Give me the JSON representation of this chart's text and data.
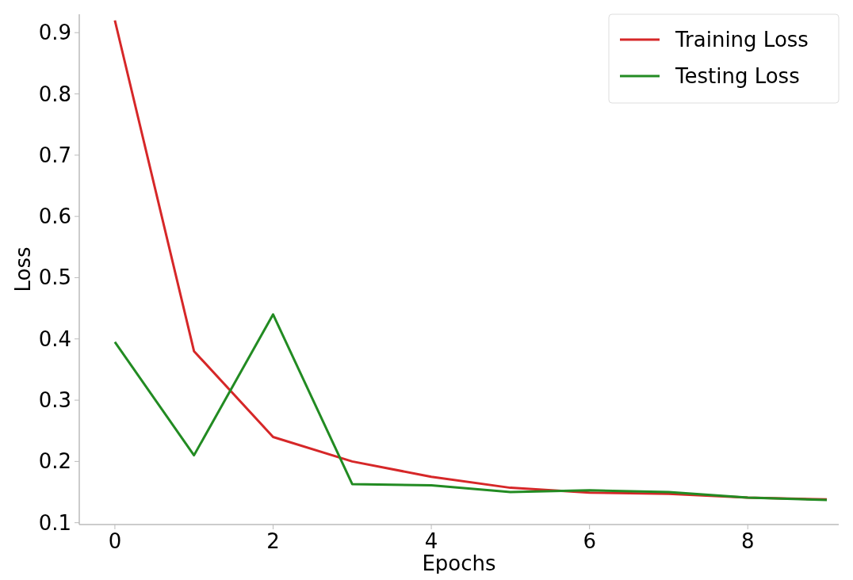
{
  "chart_data": {
    "type": "line",
    "xlabel": "Epochs",
    "ylabel": "Loss",
    "x": [
      0,
      1,
      2,
      3,
      4,
      5,
      6,
      7,
      8,
      9
    ],
    "series": [
      {
        "name": "Training Loss",
        "color": "#d62728",
        "values": [
          0.92,
          0.38,
          0.24,
          0.2,
          0.175,
          0.157,
          0.149,
          0.147,
          0.141,
          0.138
        ]
      },
      {
        "name": "Testing Loss",
        "color": "#228b22",
        "values": [
          0.395,
          0.21,
          0.44,
          0.163,
          0.161,
          0.15,
          0.153,
          0.15,
          0.141,
          0.137
        ]
      }
    ],
    "xlim": [
      -0.45,
      9.15
    ],
    "ylim": [
      0.097,
      0.93
    ],
    "xticks": [
      0,
      2,
      4,
      6,
      8
    ],
    "yticks": [
      0.1,
      0.2,
      0.3,
      0.4,
      0.5,
      0.6,
      0.7,
      0.8,
      0.9
    ],
    "grid": false,
    "legend": "top right",
    "line_style": "solid",
    "marker": "none"
  }
}
